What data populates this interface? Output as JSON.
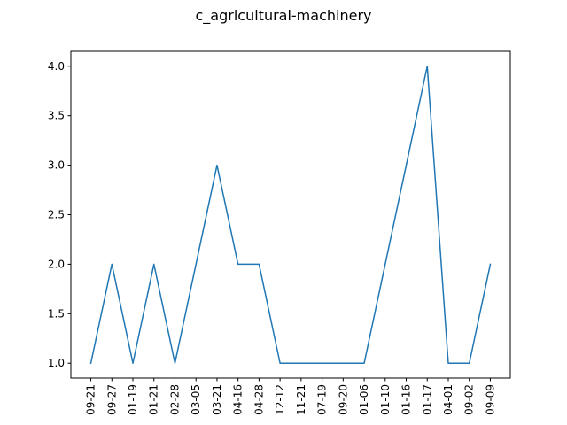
{
  "chart_data": {
    "type": "line",
    "title": "c_agricultural-machinery",
    "xlabel": "",
    "ylabel": "",
    "x": [
      "09-21",
      "09-27",
      "01-19",
      "01-21",
      "02-28",
      "03-05",
      "03-21",
      "04-16",
      "04-28",
      "12-12",
      "11-21",
      "07-19",
      "09-20",
      "01-06",
      "01-10",
      "01-16",
      "01-17",
      "04-01",
      "09-02",
      "09-09"
    ],
    "series": [
      {
        "values": [
          1,
          2,
          1,
          2,
          1,
          2,
          3,
          2,
          2,
          1,
          1,
          1,
          1,
          1,
          2,
          3,
          4,
          1,
          1,
          2
        ],
        "color": "#1f77b4"
      }
    ],
    "ylim": [
      0.85,
      4.15
    ],
    "yticks": [
      "1.0",
      "1.5",
      "2.0",
      "2.5",
      "3.0",
      "3.5",
      "4.0"
    ],
    "grid": false,
    "legend": "none"
  }
}
